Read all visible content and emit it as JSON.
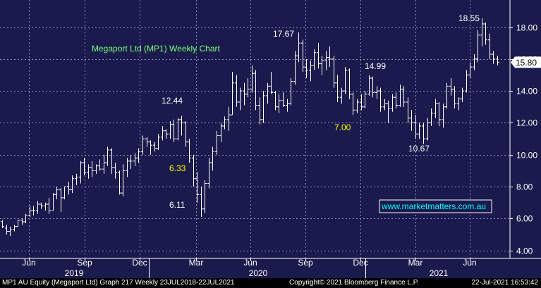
{
  "chart_data": {
    "type": "ohlc",
    "title": "Megaport Ltd (MP1) Weekly Chart",
    "watermark": "www.marketmatters.com.au",
    "last_price_label": "15.80",
    "last_price": 15.8,
    "ylim": [
      3.5,
      19.7
    ],
    "y_ticks": [
      4,
      6,
      8,
      10,
      12,
      14,
      16,
      18
    ],
    "y_tick_labels": [
      "4.00",
      "6.00",
      "8.00",
      "10.00",
      "12.00",
      "14.00",
      "16.00",
      "18.00"
    ],
    "x_month_labels": [
      "Jun",
      "Sep",
      "Dec",
      "Mar",
      "Jun",
      "Sep",
      "Dec",
      "Mar",
      "Jun"
    ],
    "x_year_labels": [
      "2019",
      "2020",
      "2021"
    ],
    "grid": true,
    "colors": {
      "background": "#1b1a4c",
      "bars": "#ffffff",
      "title": "#7dff7d",
      "annotation_white": "#ffffff",
      "annotation_yellow": "#ffff00",
      "watermark": "#00ffff",
      "grid": "#8e8ec0"
    },
    "annotations": [
      {
        "text": "18.55",
        "color": "white"
      },
      {
        "text": "17.67",
        "color": "white"
      },
      {
        "text": "14.99",
        "color": "white"
      },
      {
        "text": "12.44",
        "color": "white"
      },
      {
        "text": "7.00",
        "color": "yellow"
      },
      {
        "text": "6.33",
        "color": "yellow"
      },
      {
        "text": "10.67",
        "color": "white"
      },
      {
        "text": "6.11",
        "color": "white"
      }
    ],
    "series": [
      {
        "values": [
          [
            5.8,
            5.9,
            5.4,
            5.5
          ],
          [
            5.4,
            5.6,
            5.0,
            5.2
          ],
          [
            5.2,
            5.5,
            4.9,
            5.3
          ],
          [
            5.3,
            5.6,
            5.2,
            5.5
          ],
          [
            5.5,
            5.9,
            5.5,
            5.9
          ],
          [
            5.9,
            6.0,
            5.6,
            5.8
          ],
          [
            5.8,
            6.3,
            5.7,
            6.2
          ],
          [
            6.2,
            6.8,
            6.1,
            6.5
          ],
          [
            6.5,
            6.8,
            6.2,
            6.5
          ],
          [
            6.5,
            7.1,
            6.3,
            6.9
          ],
          [
            6.9,
            7.0,
            6.6,
            6.8
          ],
          [
            6.8,
            7.0,
            6.5,
            6.9
          ],
          [
            6.9,
            7.3,
            6.3,
            6.5
          ],
          [
            6.5,
            7.6,
            6.5,
            7.5
          ],
          [
            7.5,
            8.0,
            7.2,
            7.8
          ],
          [
            7.8,
            7.9,
            6.4,
            7.3
          ],
          [
            7.3,
            8.0,
            7.2,
            8.0
          ],
          [
            8.0,
            8.3,
            7.5,
            7.8
          ],
          [
            7.8,
            8.7,
            7.6,
            8.5
          ],
          [
            8.5,
            8.8,
            8.1,
            8.6
          ],
          [
            8.6,
            9.6,
            8.2,
            9.5
          ],
          [
            9.5,
            9.8,
            8.7,
            8.9
          ],
          [
            8.9,
            9.4,
            8.5,
            9.2
          ],
          [
            9.2,
            9.6,
            8.6,
            9.0
          ],
          [
            9.0,
            9.4,
            8.8,
            9.3
          ],
          [
            9.3,
            9.7,
            9.0,
            9.1
          ],
          [
            9.1,
            10.0,
            8.8,
            9.5
          ],
          [
            9.5,
            10.5,
            9.3,
            10.3
          ],
          [
            10.3,
            10.4,
            8.8,
            9.2
          ],
          [
            9.2,
            9.5,
            8.5,
            8.9
          ],
          [
            8.9,
            9.0,
            7.5,
            7.6
          ],
          [
            7.6,
            9.4,
            7.4,
            9.0
          ],
          [
            9.0,
            9.8,
            8.6,
            9.6
          ],
          [
            9.6,
            10.0,
            9.1,
            9.6
          ],
          [
            9.6,
            10.1,
            9.3,
            9.8
          ],
          [
            9.8,
            10.4,
            9.5,
            10.2
          ],
          [
            10.2,
            11.2,
            10.0,
            11.0
          ],
          [
            11.0,
            11.1,
            10.5,
            10.8
          ],
          [
            10.8,
            10.9,
            10.0,
            10.6
          ],
          [
            10.6,
            10.8,
            10.2,
            10.4
          ],
          [
            10.4,
            11.3,
            10.3,
            11.1
          ],
          [
            11.1,
            11.8,
            10.9,
            11.5
          ],
          [
            11.5,
            11.6,
            11.0,
            11.3
          ],
          [
            11.3,
            12.1,
            11.0,
            11.9
          ],
          [
            11.9,
            12.2,
            10.8,
            11.0
          ],
          [
            11.0,
            12.3,
            10.9,
            12.2
          ],
          [
            12.2,
            12.44,
            11.2,
            12.0
          ],
          [
            12.0,
            12.1,
            10.5,
            10.8
          ],
          [
            10.8,
            11.0,
            9.5,
            9.8
          ],
          [
            9.8,
            10.0,
            8.0,
            8.5
          ],
          [
            8.5,
            8.9,
            7.0,
            7.5
          ],
          [
            7.5,
            8.0,
            6.11,
            6.6
          ],
          [
            6.6,
            8.4,
            6.33,
            8.2
          ],
          [
            8.2,
            9.8,
            7.9,
            9.5
          ],
          [
            9.5,
            10.5,
            9.0,
            10.2
          ],
          [
            10.2,
            11.5,
            10.0,
            11.2
          ],
          [
            11.2,
            12.0,
            10.8,
            11.8
          ],
          [
            11.8,
            12.4,
            11.6,
            12.2
          ],
          [
            12.2,
            13.0,
            11.5,
            12.5
          ],
          [
            12.5,
            15.2,
            12.5,
            14.5
          ],
          [
            14.5,
            15.0,
            13.0,
            13.3
          ],
          [
            13.3,
            14.2,
            12.8,
            14.0
          ],
          [
            14.0,
            14.5,
            13.1,
            13.8
          ],
          [
            13.8,
            14.8,
            13.6,
            14.1
          ],
          [
            14.1,
            15.6,
            13.9,
            15.1
          ],
          [
            15.1,
            15.3,
            12.8,
            13.1
          ],
          [
            13.1,
            13.6,
            11.9,
            12.2
          ],
          [
            12.2,
            14.0,
            12.0,
            13.7
          ],
          [
            13.7,
            14.5,
            13.2,
            14.3
          ],
          [
            14.3,
            15.2,
            13.8,
            13.9
          ],
          [
            13.9,
            14.0,
            12.8,
            13.0
          ],
          [
            13.0,
            13.8,
            12.6,
            13.4
          ],
          [
            13.4,
            13.9,
            13.0,
            13.1
          ],
          [
            13.1,
            13.5,
            12.7,
            13.2
          ],
          [
            13.2,
            14.8,
            13.1,
            14.6
          ],
          [
            14.6,
            16.5,
            14.4,
            16.2
          ],
          [
            16.2,
            17.67,
            15.8,
            17.0
          ],
          [
            17.0,
            17.2,
            15.2,
            15.5
          ],
          [
            15.5,
            16.0,
            14.8,
            15.3
          ],
          [
            15.3,
            15.9,
            14.6,
            15.6
          ],
          [
            15.6,
            16.6,
            15.3,
            16.4
          ],
          [
            16.4,
            17.0,
            15.4,
            15.7
          ],
          [
            15.7,
            16.2,
            15.0,
            15.9
          ],
          [
            15.9,
            16.5,
            15.3,
            16.1
          ],
          [
            16.1,
            16.8,
            15.5,
            16.0
          ],
          [
            16.0,
            16.2,
            14.2,
            14.5
          ],
          [
            14.5,
            15.0,
            13.3,
            13.6
          ],
          [
            13.6,
            14.2,
            13.2,
            14.0
          ],
          [
            14.0,
            15.5,
            13.8,
            15.3
          ],
          [
            15.3,
            15.4,
            13.5,
            13.8
          ],
          [
            13.8,
            13.9,
            12.5,
            12.8
          ],
          [
            12.8,
            13.5,
            12.6,
            13.3
          ],
          [
            13.3,
            13.8,
            12.8,
            13.0
          ],
          [
            13.0,
            14.0,
            12.9,
            13.8
          ],
          [
            13.8,
            14.99,
            13.7,
            14.8
          ],
          [
            14.8,
            14.9,
            13.6,
            13.9
          ],
          [
            13.9,
            14.3,
            13.5,
            14.0
          ],
          [
            14.0,
            14.2,
            12.7,
            13.0
          ],
          [
            13.0,
            13.5,
            12.8,
            13.2
          ],
          [
            13.2,
            13.4,
            12.0,
            12.9
          ],
          [
            12.9,
            13.8,
            12.7,
            13.6
          ],
          [
            13.6,
            13.9,
            12.9,
            13.1
          ],
          [
            13.1,
            14.4,
            13.0,
            14.1
          ],
          [
            14.1,
            14.3,
            13.0,
            13.3
          ],
          [
            13.3,
            13.6,
            12.0,
            12.3
          ],
          [
            12.3,
            12.8,
            11.5,
            12.0
          ],
          [
            12.0,
            12.5,
            11.0,
            11.3
          ],
          [
            11.3,
            12.0,
            11.0,
            11.8
          ],
          [
            11.8,
            12.0,
            10.67,
            11.0
          ],
          [
            11.0,
            12.3,
            10.9,
            12.0
          ],
          [
            12.0,
            12.9,
            11.8,
            12.6
          ],
          [
            12.6,
            13.5,
            12.3,
            13.2
          ],
          [
            13.2,
            13.3,
            11.8,
            12.2
          ],
          [
            12.2,
            13.2,
            11.7,
            13.0
          ],
          [
            13.0,
            14.5,
            12.9,
            14.3
          ],
          [
            14.3,
            14.8,
            13.7,
            14.1
          ],
          [
            14.1,
            14.3,
            12.9,
            13.2
          ],
          [
            13.2,
            13.6,
            12.8,
            13.5
          ],
          [
            13.5,
            14.2,
            13.3,
            14.0
          ],
          [
            14.0,
            15.3,
            13.9,
            15.0
          ],
          [
            15.0,
            15.8,
            14.8,
            15.5
          ],
          [
            15.5,
            16.3,
            15.3,
            16.0
          ],
          [
            16.0,
            17.8,
            15.8,
            17.5
          ],
          [
            17.5,
            18.55,
            16.8,
            18.2
          ],
          [
            18.2,
            18.3,
            16.9,
            17.2
          ],
          [
            17.2,
            17.6,
            16.0,
            16.3
          ],
          [
            16.3,
            16.5,
            15.7,
            16.0
          ],
          [
            16.0,
            16.2,
            15.6,
            15.8
          ]
        ]
      }
    ]
  },
  "footer": {
    "left": "MP1 AU Equity (Megaport Ltd) Graph 217  Weekly 23JUL2018-22JUL2021",
    "copyright": "Copyright© 2021 Bloomberg Finance L.P.",
    "timestamp": "22-Jul-2021 16:53:42"
  }
}
